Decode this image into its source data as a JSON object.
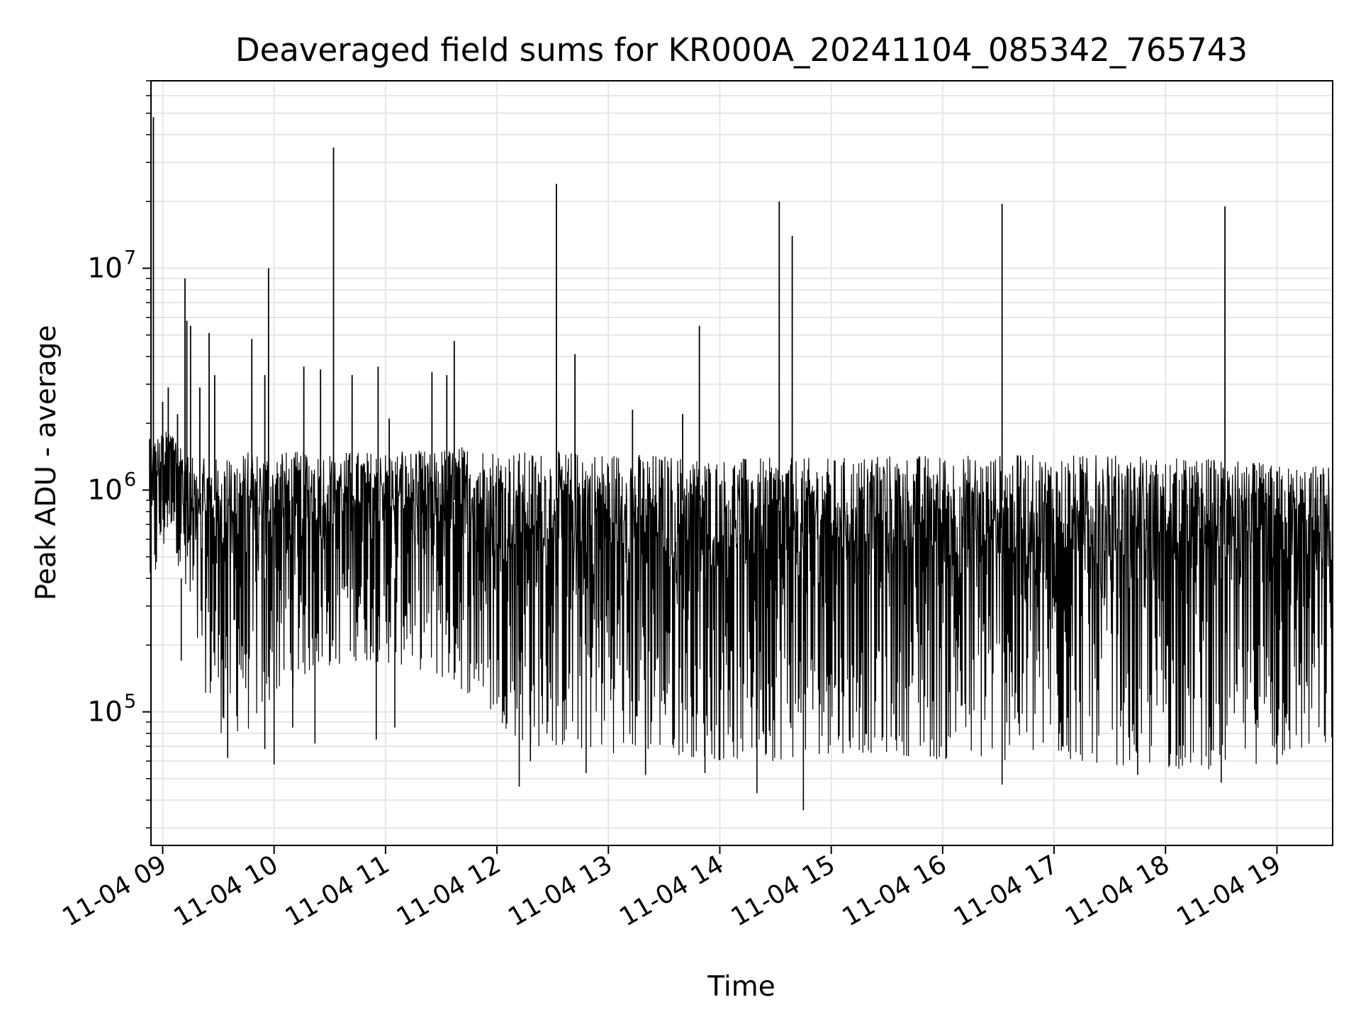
{
  "chart_data": {
    "type": "line",
    "title": "Deaveraged field sums for KR000A_20241104_085342_765743",
    "xlabel": "Time",
    "ylabel": "Peak ADU - average",
    "yscale": "log",
    "ylim": [
      25000,
      70000000
    ],
    "xlim": [
      "2024-11-04 08:53:42",
      "2024-11-04 19:30:00"
    ],
    "grid": true,
    "x_ticks": [
      {
        "t": "2024-11-04 09:00",
        "label": "11-04 09"
      },
      {
        "t": "2024-11-04 10:00",
        "label": "11-04 10"
      },
      {
        "t": "2024-11-04 11:00",
        "label": "11-04 11"
      },
      {
        "t": "2024-11-04 12:00",
        "label": "11-04 12"
      },
      {
        "t": "2024-11-04 13:00",
        "label": "11-04 13"
      },
      {
        "t": "2024-11-04 14:00",
        "label": "11-04 14"
      },
      {
        "t": "2024-11-04 15:00",
        "label": "11-04 15"
      },
      {
        "t": "2024-11-04 16:00",
        "label": "11-04 16"
      },
      {
        "t": "2024-11-04 17:00",
        "label": "11-04 17"
      },
      {
        "t": "2024-11-04 18:00",
        "label": "11-04 18"
      },
      {
        "t": "2024-11-04 19:00",
        "label": "11-04 19"
      }
    ],
    "y_ticks": [
      {
        "value": 100000,
        "label": "10",
        "exp": "5"
      },
      {
        "value": 1000000,
        "label": "10",
        "exp": "6"
      },
      {
        "value": 10000000,
        "label": "10",
        "exp": "7"
      }
    ],
    "series": [
      {
        "color": "#000000",
        "envelope": [
          {
            "t": "2024-11-04 08:53",
            "low": 300000,
            "high": 1700000
          },
          {
            "t": "2024-11-04 09:05",
            "low": 700000,
            "high": 1900000
          },
          {
            "t": "2024-11-04 09:15",
            "low": 200000,
            "high": 1400000
          },
          {
            "t": "2024-11-04 09:30",
            "low": 80000,
            "high": 1400000
          },
          {
            "t": "2024-11-04 09:45",
            "low": 80000,
            "high": 1500000
          },
          {
            "t": "2024-11-04 10:00",
            "low": 110000,
            "high": 1500000
          },
          {
            "t": "2024-11-04 10:20",
            "low": 150000,
            "high": 1500000
          },
          {
            "t": "2024-11-04 10:45",
            "low": 170000,
            "high": 1500000
          },
          {
            "t": "2024-11-04 11:15",
            "low": 160000,
            "high": 1500000
          },
          {
            "t": "2024-11-04 11:45",
            "low": 120000,
            "high": 1600000
          },
          {
            "t": "2024-11-04 12:15",
            "low": 70000,
            "high": 1500000
          },
          {
            "t": "2024-11-04 13:00",
            "low": 65000,
            "high": 1500000
          },
          {
            "t": "2024-11-04 13:30",
            "low": 65000,
            "high": 1450000
          },
          {
            "t": "2024-11-04 14:00",
            "low": 60000,
            "high": 1400000
          },
          {
            "t": "2024-11-04 14:30",
            "low": 60000,
            "high": 1400000
          },
          {
            "t": "2024-11-04 15:00",
            "low": 65000,
            "high": 1400000
          },
          {
            "t": "2024-11-04 15:30",
            "low": 65000,
            "high": 1450000
          },
          {
            "t": "2024-11-04 16:00",
            "low": 60000,
            "high": 1450000
          },
          {
            "t": "2024-11-04 16:30",
            "low": 60000,
            "high": 1450000
          },
          {
            "t": "2024-11-04 17:00",
            "low": 60000,
            "high": 1450000
          },
          {
            "t": "2024-11-04 17:30",
            "low": 58000,
            "high": 1450000
          },
          {
            "t": "2024-11-04 18:00",
            "low": 55000,
            "high": 1400000
          },
          {
            "t": "2024-11-04 18:30",
            "low": 55000,
            "high": 1400000
          },
          {
            "t": "2024-11-04 19:00",
            "low": 60000,
            "high": 1300000
          },
          {
            "t": "2024-11-04 19:30",
            "low": 65000,
            "high": 1300000
          }
        ],
        "spikes": [
          {
            "t": "2024-11-04 08:53",
            "value": 1700000
          },
          {
            "t": "2024-11-04 08:55",
            "value": 48000000
          },
          {
            "t": "2024-11-04 09:00",
            "value": 2500000
          },
          {
            "t": "2024-11-04 09:03",
            "value": 2900000
          },
          {
            "t": "2024-11-04 09:08",
            "value": 2200000
          },
          {
            "t": "2024-11-04 09:12",
            "value": 9000000
          },
          {
            "t": "2024-11-04 09:13",
            "value": 5800000
          },
          {
            "t": "2024-11-04 09:15",
            "value": 5500000
          },
          {
            "t": "2024-11-04 09:20",
            "value": 2900000
          },
          {
            "t": "2024-11-04 09:25",
            "value": 5100000
          },
          {
            "t": "2024-11-04 09:28",
            "value": 3300000
          },
          {
            "t": "2024-11-04 09:48",
            "value": 4800000
          },
          {
            "t": "2024-11-04 09:55",
            "value": 3300000
          },
          {
            "t": "2024-11-04 09:57",
            "value": 10000000
          },
          {
            "t": "2024-11-04 10:16",
            "value": 3600000
          },
          {
            "t": "2024-11-04 10:25",
            "value": 3500000
          },
          {
            "t": "2024-11-04 10:32",
            "value": 35000000
          },
          {
            "t": "2024-11-04 10:42",
            "value": 3300000
          },
          {
            "t": "2024-11-04 10:56",
            "value": 3600000
          },
          {
            "t": "2024-11-04 11:02",
            "value": 2100000
          },
          {
            "t": "2024-11-04 11:25",
            "value": 3400000
          },
          {
            "t": "2024-11-04 11:33",
            "value": 3300000
          },
          {
            "t": "2024-11-04 11:37",
            "value": 4700000
          },
          {
            "t": "2024-11-04 12:32",
            "value": 24000000
          },
          {
            "t": "2024-11-04 12:42",
            "value": 4100000
          },
          {
            "t": "2024-11-04 13:13",
            "value": 2300000
          },
          {
            "t": "2024-11-04 13:40",
            "value": 2200000
          },
          {
            "t": "2024-11-04 13:49",
            "value": 5500000
          },
          {
            "t": "2024-11-04 14:32",
            "value": 20000000
          },
          {
            "t": "2024-11-04 14:39",
            "value": 14000000
          },
          {
            "t": "2024-11-04 16:32",
            "value": 19500000
          },
          {
            "t": "2024-11-04 18:32",
            "value": 19000000
          }
        ],
        "dips": [
          {
            "t": "2024-11-04 09:10",
            "value": 170000
          },
          {
            "t": "2024-11-04 09:35",
            "value": 62000
          },
          {
            "t": "2024-11-04 09:55",
            "value": 68000
          },
          {
            "t": "2024-11-04 10:00",
            "value": 58000
          },
          {
            "t": "2024-11-04 10:10",
            "value": 85000
          },
          {
            "t": "2024-11-04 10:22",
            "value": 72000
          },
          {
            "t": "2024-11-04 10:55",
            "value": 75000
          },
          {
            "t": "2024-11-04 11:05",
            "value": 85000
          },
          {
            "t": "2024-11-04 12:12",
            "value": 46000
          },
          {
            "t": "2024-11-04 12:18",
            "value": 60000
          },
          {
            "t": "2024-11-04 12:48",
            "value": 53000
          },
          {
            "t": "2024-11-04 13:20",
            "value": 52000
          },
          {
            "t": "2024-11-04 13:52",
            "value": 53000
          },
          {
            "t": "2024-11-04 14:20",
            "value": 43000
          },
          {
            "t": "2024-11-04 14:45",
            "value": 36000
          },
          {
            "t": "2024-11-04 16:32",
            "value": 47000
          },
          {
            "t": "2024-11-04 17:45",
            "value": 52000
          },
          {
            "t": "2024-11-04 18:30",
            "value": 48000
          },
          {
            "t": "2024-11-04 19:00",
            "value": 58000
          }
        ]
      }
    ]
  }
}
